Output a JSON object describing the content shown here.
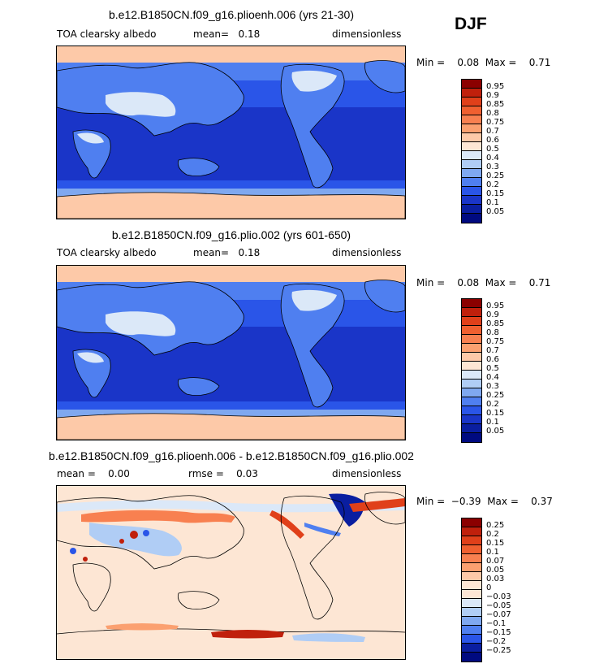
{
  "season": "DJF",
  "panels": [
    {
      "title": "b.e12.B1850CN.f09_g16.plioenh.006 (yrs 21-30)",
      "left_label": "TOA clearsky albedo",
      "center_label": "mean=   0.18",
      "right_label": "dimensionless",
      "minmax": "Min =    0.08  Max =    0.71",
      "colorbar_labels": [
        "0.95",
        "0.9",
        "0.85",
        "0.8",
        "0.75",
        "0.7",
        "0.6",
        "0.5",
        "0.4",
        "0.3",
        "0.25",
        "0.2",
        "0.15",
        "0.1",
        "0.05"
      ],
      "colorbar_colors": [
        "#8b0000",
        "#c0200c",
        "#e0401a",
        "#f06030",
        "#f88050",
        "#fba070",
        "#fdc9a8",
        "#fde6d4",
        "#dbe8f8",
        "#b0cdf5",
        "#7fa8f0",
        "#4f7ff0",
        "#2a55e8",
        "#1a35c8",
        "#0a1ea0",
        "#000a80"
      ],
      "map_kind": "absolute"
    },
    {
      "title": "b.e12.B1850CN.f09_g16.plio.002 (yrs 601-650)",
      "left_label": "TOA clearsky albedo",
      "center_label": "mean=   0.18",
      "right_label": "dimensionless",
      "minmax": "Min =    0.08  Max =    0.71",
      "colorbar_labels": [
        "0.95",
        "0.9",
        "0.85",
        "0.8",
        "0.75",
        "0.7",
        "0.6",
        "0.5",
        "0.4",
        "0.3",
        "0.25",
        "0.2",
        "0.15",
        "0.1",
        "0.05"
      ],
      "colorbar_colors": [
        "#8b0000",
        "#c0200c",
        "#e0401a",
        "#f06030",
        "#f88050",
        "#fba070",
        "#fdc9a8",
        "#fde6d4",
        "#dbe8f8",
        "#b0cdf5",
        "#7fa8f0",
        "#4f7ff0",
        "#2a55e8",
        "#1a35c8",
        "#0a1ea0",
        "#000a80"
      ],
      "map_kind": "absolute"
    },
    {
      "title": "b.e12.B1850CN.f09_g16.plioenh.006 - b.e12.B1850CN.f09_g16.plio.002",
      "left_label": "mean =    0.00",
      "center_label": "rmse =    0.03",
      "right_label": "dimensionless",
      "minmax": "Min =  −0.39  Max =    0.37",
      "colorbar_labels": [
        "0.25",
        "0.2",
        "0.15",
        "0.1",
        "0.07",
        "0.05",
        "0.03",
        "0",
        "−0.03",
        "−0.05",
        "−0.07",
        "−0.1",
        "−0.15",
        "−0.2",
        "−0.25"
      ],
      "colorbar_colors": [
        "#8b0000",
        "#c0200c",
        "#e0401a",
        "#f06030",
        "#f88050",
        "#fba070",
        "#fdc9a8",
        "#fde6d4",
        "#fde6d4",
        "#dbe8f8",
        "#b0cdf5",
        "#7fa8f0",
        "#4f7ff0",
        "#2a55e8",
        "#0a1ea0",
        "#000a80"
      ],
      "map_kind": "difference"
    }
  ]
}
